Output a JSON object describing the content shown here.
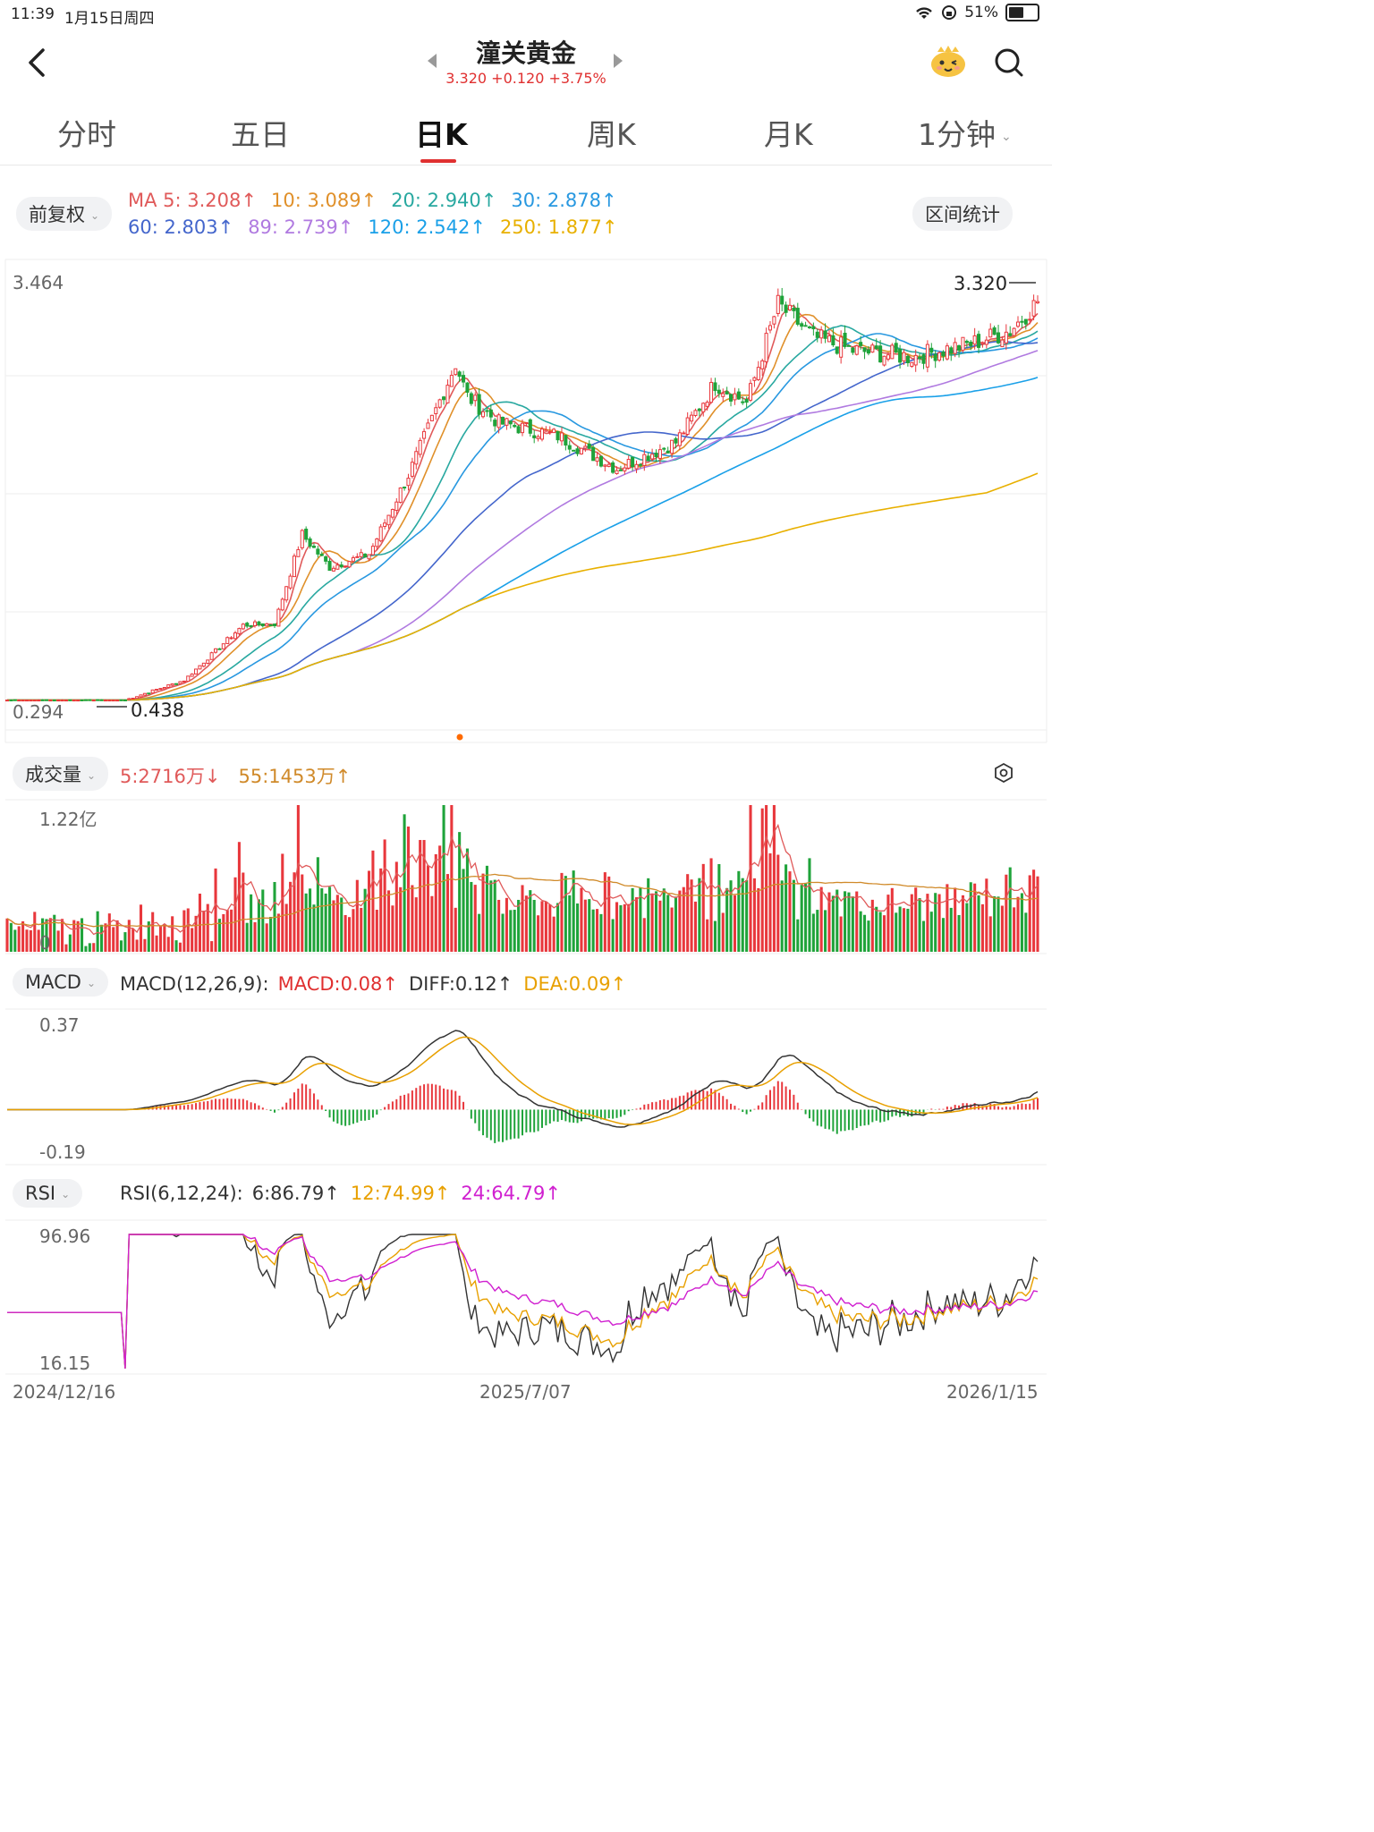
{
  "status": {
    "time": "11:39",
    "date": "1月15日周四",
    "battery": "51%"
  },
  "header": {
    "title": "潼关黄金",
    "quote": "3.320 +0.120 +3.75%"
  },
  "tabs": [
    "分时",
    "五日",
    "日K",
    "周K",
    "月K",
    "1分钟"
  ],
  "adj": {
    "label": "前复权",
    "interval_btn": "区间统计"
  },
  "ma": {
    "row1": [
      "MA 5: 3.208↑",
      "10: 3.089↑",
      "20: 2.940↑",
      "30: 2.878↑"
    ],
    "row2": [
      "60: 2.803↑",
      "89: 2.739↑",
      "120: 2.542↑",
      "250: 1.877↑"
    ],
    "colors": [
      "#e05a5a",
      "#e0902a",
      "#28a8a0",
      "#2898e0",
      "#4466cc",
      "#b07ae0",
      "#1aa0e8",
      "#e8b000"
    ]
  },
  "kline": {
    "max_label": "3.464",
    "min_label": "0.294",
    "high_mark": "3.320",
    "low_mark": "0.438"
  },
  "volume": {
    "label": "成交量",
    "ma5": "5:2716万↓",
    "ma55": "55:1453万↑",
    "max_label": "1.22亿",
    "min_label": "0"
  },
  "macd": {
    "label": "MACD",
    "params": "MACD(12,26,9):",
    "macd": "MACD:0.08↑",
    "diff": "DIFF:0.12↑",
    "dea": "DEA:0.09↑",
    "max_label": "0.37",
    "min_label": "-0.19"
  },
  "rsi": {
    "label": "RSI",
    "params": "RSI(6,12,24):",
    "r6": "6:86.79↑",
    "r12": "12:74.99↑",
    "r24": "24:64.79↑",
    "max_label": "96.96",
    "min_label": "16.15"
  },
  "dates": [
    "2024/12/16",
    "2025/7/07",
    "2026/1/15"
  ],
  "chart_data": {
    "type": "candlestick",
    "price_range": [
      0.294,
      3.464
    ],
    "close_approx": [
      [
        0,
        0.29
      ],
      [
        30,
        0.29
      ],
      [
        45,
        0.44
      ],
      [
        60,
        0.86
      ],
      [
        68,
        0.87
      ],
      [
        75,
        1.55
      ],
      [
        82,
        1.3
      ],
      [
        92,
        1.4
      ],
      [
        102,
        2.0
      ],
      [
        114,
        2.85
      ],
      [
        117,
        2.6
      ],
      [
        125,
        2.4
      ],
      [
        140,
        2.3
      ],
      [
        155,
        2.05
      ],
      [
        170,
        2.25
      ],
      [
        180,
        2.7
      ],
      [
        188,
        2.55
      ],
      [
        196,
        3.3
      ],
      [
        205,
        3.05
      ],
      [
        215,
        2.95
      ],
      [
        230,
        2.9
      ],
      [
        245,
        3.0
      ],
      [
        255,
        3.1
      ],
      [
        262,
        3.32
      ]
    ],
    "ma_last": {
      "MA5": 3.208,
      "MA10": 3.089,
      "MA20": 2.94,
      "MA30": 2.878,
      "MA60": 2.803,
      "MA89": 2.739,
      "MA120": 2.542,
      "MA250": 1.877
    }
  }
}
